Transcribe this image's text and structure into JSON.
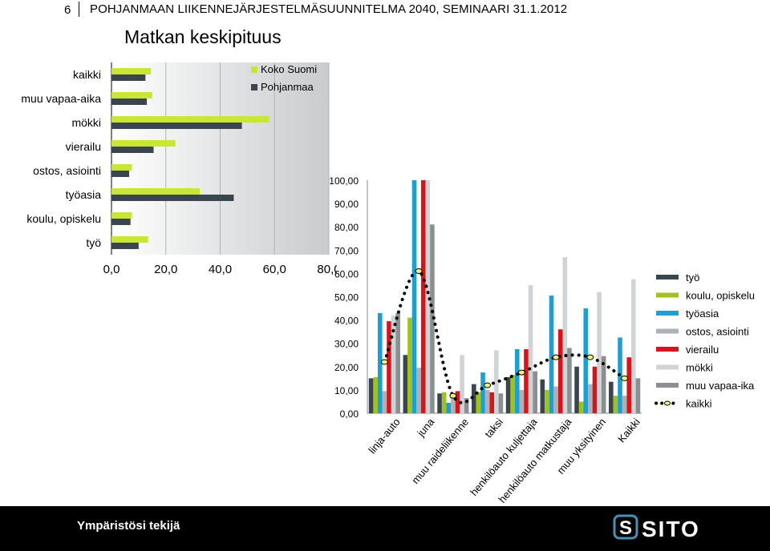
{
  "header": {
    "page_number": "6",
    "title": "POHJANMAAN LIIKENNEJÄRJESTELMÄSUUNNITELMA 2040, SEMINAARI 31.1.2012"
  },
  "main_title": "Matkan keskipituus",
  "colors": {
    "koko_suomi": "#c8e632",
    "pohjanmaa": "#3b4550",
    "tyo": "#3b4550",
    "koulu_opiskelu": "#9fc21e",
    "tyoasia": "#1e9fd2",
    "ostos_asiointi": "#a9b3b8",
    "vierailu": "#d7141c",
    "mokki": "#cfd4d7",
    "muu_vapaa_aika": "#8a8f92",
    "kaikki": "#000000"
  },
  "chart_data": [
    {
      "type": "bar",
      "orientation": "horizontal",
      "title": "Matkan keskipituus",
      "categories": [
        "kaikki",
        "muu vapaa-aika",
        "mökki",
        "vierailu",
        "ostos, asiointi",
        "työasia",
        "koulu, opiskelu",
        "työ"
      ],
      "series": [
        {
          "name": "Koko Suomi",
          "values": [
            14.5,
            15,
            58,
            23.5,
            7.5,
            32.5,
            7.5,
            13.5
          ]
        },
        {
          "name": "Pohjanmaa",
          "values": [
            12.5,
            13,
            48,
            15.5,
            6.5,
            45,
            7,
            10
          ]
        }
      ],
      "xlim": [
        0,
        80
      ],
      "xticks": [
        "0,0",
        "20,0",
        "40,0",
        "60,0",
        "80,0"
      ],
      "legend": "top-right"
    },
    {
      "type": "bar",
      "orientation": "vertical",
      "categories": [
        "linja-auto",
        "juna",
        "muu raideliikenne",
        "taksi",
        "henkilöauto kuljettaja",
        "henkilöauto matkustaja",
        "muu yksityinen",
        "Kaikki"
      ],
      "series": [
        {
          "name": "työ",
          "values": [
            15,
            25,
            8.5,
            12.5,
            15.5,
            14.5,
            20,
            13.5
          ]
        },
        {
          "name": "koulu, opiskelu",
          "values": [
            15.5,
            41,
            9,
            9,
            16.5,
            10,
            5,
            7.5
          ]
        },
        {
          "name": "työasia",
          "values": [
            43,
            100,
            4.5,
            17.5,
            27.5,
            50.5,
            45,
            32.5
          ]
        },
        {
          "name": "ostos, asiointi",
          "values": [
            9.5,
            19.5,
            6.5,
            10,
            10,
            11.5,
            12.5,
            7.5
          ]
        },
        {
          "name": "vierailu",
          "values": [
            39.5,
            100,
            9.5,
            9,
            27.5,
            36,
            20,
            24
          ]
        },
        {
          "name": "mökki",
          "values": [
            42,
            100,
            25,
            27,
            55,
            67,
            52,
            57.5
          ]
        },
        {
          "name": "muu vapaa-ika",
          "values": [
            43,
            81,
            6.5,
            8.5,
            18,
            28,
            24.5,
            15
          ]
        },
        {
          "name": "kaikki",
          "type": "line",
          "values": [
            22,
            61,
            7.5,
            12,
            17.5,
            24,
            24,
            15
          ]
        }
      ],
      "ylim": [
        0,
        100
      ],
      "yticks": [
        "0,00",
        "10,00",
        "20,00",
        "30,00",
        "40,00",
        "50,00",
        "60,00",
        "70,00",
        "80,00",
        "90,00",
        "100,00"
      ],
      "legend": "right"
    }
  ],
  "footer": {
    "text": "Ympäristösi tekijä",
    "logo_text": "SITO"
  }
}
